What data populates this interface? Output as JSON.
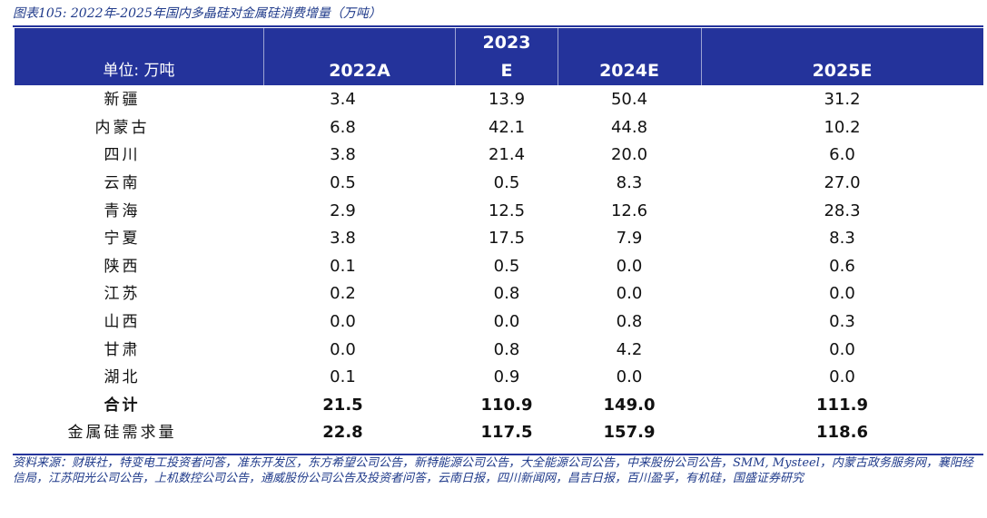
{
  "title": "图表105:  2022年-2025年国内多晶硅对金属硅消费增量（万吨）",
  "table": {
    "headers": {
      "unit": "单位: 万吨",
      "col1": "2022A",
      "col2_line1": "2023",
      "col2_line2": "E",
      "col3": "2024E",
      "col4": "2025E"
    },
    "rows": [
      {
        "name": "新疆",
        "v2022": "3.4",
        "v2023": "13.9",
        "v2024": "50.4",
        "v2025": "31.2"
      },
      {
        "name": "内蒙古",
        "v2022": "6.8",
        "v2023": "42.1",
        "v2024": "44.8",
        "v2025": "10.2"
      },
      {
        "name": "四川",
        "v2022": "3.8",
        "v2023": "21.4",
        "v2024": "20.0",
        "v2025": "6.0"
      },
      {
        "name": "云南",
        "v2022": "0.5",
        "v2023": "0.5",
        "v2024": "8.3",
        "v2025": "27.0"
      },
      {
        "name": "青海",
        "v2022": "2.9",
        "v2023": "12.5",
        "v2024": "12.6",
        "v2025": "28.3"
      },
      {
        "name": "宁夏",
        "v2022": "3.8",
        "v2023": "17.5",
        "v2024": "7.9",
        "v2025": "8.3"
      },
      {
        "name": "陕西",
        "v2022": "0.1",
        "v2023": "0.5",
        "v2024": "0.0",
        "v2025": "0.6"
      },
      {
        "name": "江苏",
        "v2022": "0.2",
        "v2023": "0.8",
        "v2024": "0.0",
        "v2025": "0.0"
      },
      {
        "name": "山西",
        "v2022": "0.0",
        "v2023": "0.0",
        "v2024": "0.8",
        "v2025": "0.3"
      },
      {
        "name": "甘肃",
        "v2022": "0.0",
        "v2023": "0.8",
        "v2024": "4.2",
        "v2025": "0.0"
      },
      {
        "name": "湖北",
        "v2022": "0.1",
        "v2023": "0.9",
        "v2024": "0.0",
        "v2025": "0.0"
      }
    ],
    "total": {
      "name": "合计",
      "v2022": "21.5",
      "v2023": "110.9",
      "v2024": "149.0",
      "v2025": "111.9"
    },
    "demand": {
      "name": "金属硅需求量",
      "v2022": "22.8",
      "v2023": "117.5",
      "v2024": "157.9",
      "v2025": "118.6"
    }
  },
  "source": "资料来源：财联社，特变电工投资者问答，准东开发区，东方希望公司公告，新特能源公司公告，大全能源公司公告，中来股份公司公告，SMM, Mysteel，内蒙古政务服务网，襄阳经信局，江苏阳光公司公告，上机数控公司公告，通威股份公司公告及投资者问答，云南日报，四川新闻网，昌吉日报，百川盈孚，有机硅，国盛证券研究",
  "colors": {
    "header_bg": "#24339b",
    "header_text": "#ffffff",
    "title_text": "#1f3a8a"
  }
}
